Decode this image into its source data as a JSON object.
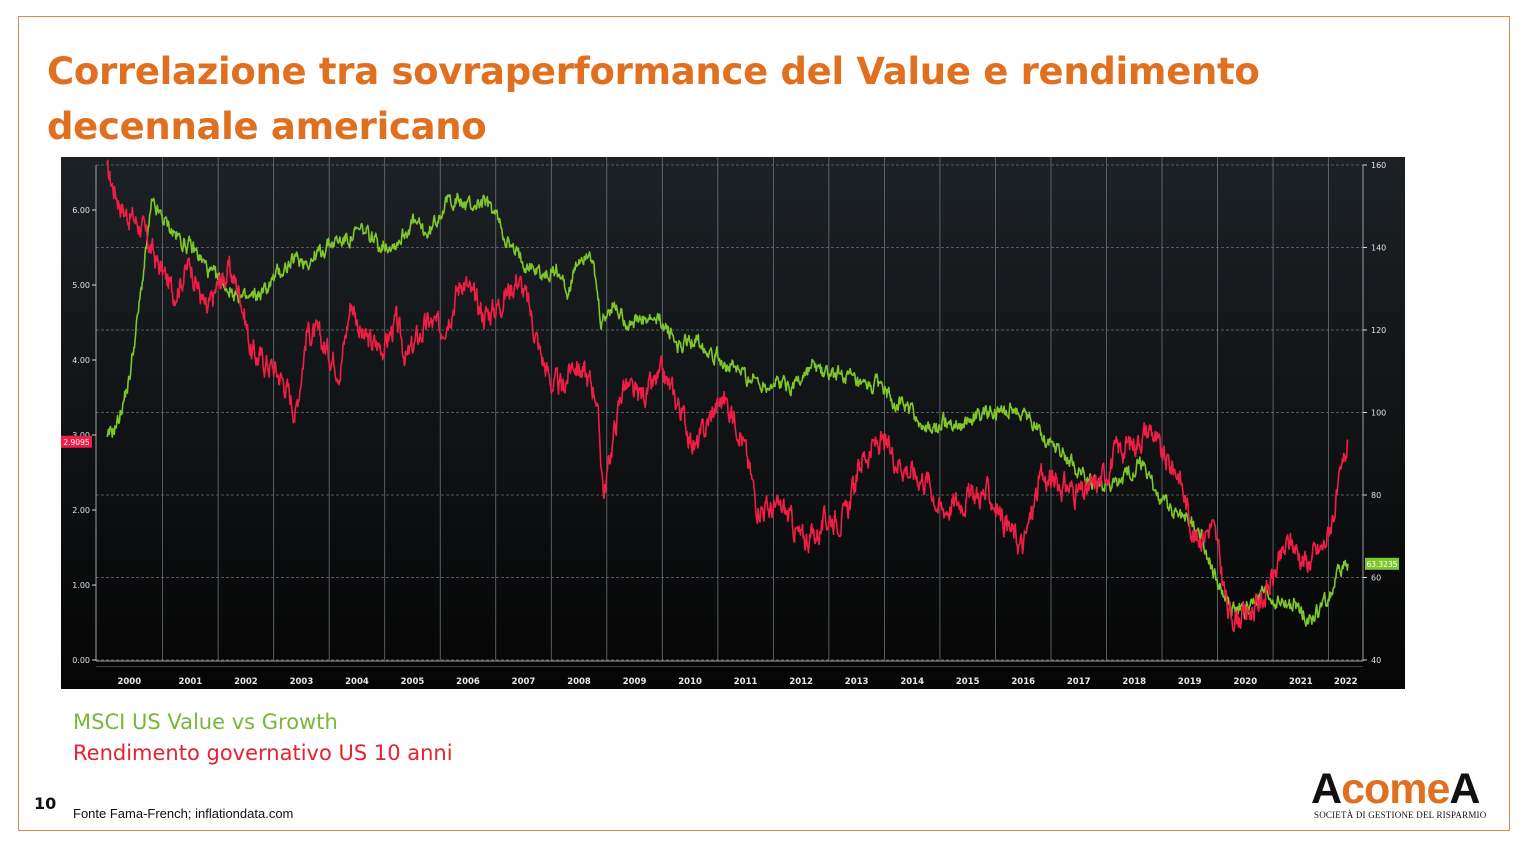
{
  "slide": {
    "title": "Correlazione tra sovraperformance del Value e rendimento decennale americano",
    "page_number": "10",
    "source": "Fonte Fama-French; inflationdata.com"
  },
  "legend": {
    "value_label": "MSCI US Value vs Growth",
    "yield_label": "Rendimento governativo US 10 anni"
  },
  "logo": {
    "part1": "A",
    "part2": "come",
    "part3": "A",
    "subtitle": "SOCIETÀ DI GESTIONE DEL RISPARMIO"
  },
  "colors": {
    "background_top": "#1c2125",
    "background_bottom": "#050505",
    "value_series": "#7ec62b",
    "yield_series": "#f01e46",
    "title": "#e0701f"
  },
  "chart_data": {
    "type": "line",
    "x_ticks": [
      "2000",
      "2001",
      "2002",
      "2003",
      "2004",
      "2005",
      "2006",
      "2007",
      "2008",
      "2009",
      "2010",
      "2011",
      "2012",
      "2013",
      "2014",
      "2015",
      "2016",
      "2017",
      "2018",
      "2019",
      "2020",
      "2021",
      "2022"
    ],
    "left_axis": {
      "ylim": [
        0,
        6.6
      ],
      "ticks": [
        "0.00",
        "1.00",
        "2.00",
        "3.00",
        "4.00",
        "5.00",
        "6.00"
      ]
    },
    "right_axis": {
      "ylim": [
        40,
        160
      ],
      "ticks": [
        "40",
        "60",
        "80",
        "100",
        "120",
        "140",
        "160"
      ]
    },
    "last_value_labels": {
      "yield": "2.9095",
      "value_vs_growth": "63.3235"
    },
    "grid": true,
    "series": [
      {
        "name": "Rendimento governativo US 10 anni",
        "axis": "left",
        "x": [
          2000.0,
          2000.3,
          2000.6,
          2000.9,
          2001.2,
          2001.5,
          2001.8,
          2002.0,
          2002.2,
          2002.4,
          2002.6,
          2002.8,
          2003.0,
          2003.2,
          2003.4,
          2003.6,
          2003.8,
          2004.0,
          2004.2,
          2004.4,
          2004.6,
          2004.8,
          2005.0,
          2005.2,
          2005.4,
          2005.6,
          2005.8,
          2006.0,
          2006.2,
          2006.4,
          2006.6,
          2006.8,
          2007.0,
          2007.2,
          2007.4,
          2007.6,
          2007.8,
          2008.0,
          2008.2,
          2008.4,
          2008.6,
          2008.8,
          2008.95,
          2009.1,
          2009.3,
          2009.5,
          2009.8,
          2010.0,
          2010.3,
          2010.6,
          2010.9,
          2011.1,
          2011.4,
          2011.7,
          2011.9,
          2012.2,
          2012.5,
          2012.8,
          2013.0,
          2013.3,
          2013.6,
          2013.9,
          2014.2,
          2014.5,
          2014.8,
          2015.0,
          2015.3,
          2015.6,
          2015.9,
          2016.2,
          2016.5,
          2016.8,
          2017.0,
          2017.3,
          2017.6,
          2017.9,
          2018.2,
          2018.5,
          2018.8,
          2019.0,
          2019.3,
          2019.6,
          2019.9,
          2020.0,
          2020.2,
          2020.5,
          2020.8,
          2021.0,
          2021.3,
          2021.6,
          2021.9,
          2022.0,
          2022.2,
          2022.35
        ],
        "values": [
          6.5,
          6.0,
          5.8,
          5.3,
          4.9,
          5.3,
          4.6,
          5.0,
          5.2,
          4.9,
          4.1,
          4.0,
          3.9,
          3.7,
          3.3,
          4.4,
          4.3,
          4.1,
          3.9,
          4.8,
          4.3,
          4.2,
          4.2,
          4.5,
          4.0,
          4.3,
          4.5,
          4.4,
          4.7,
          5.1,
          4.8,
          4.6,
          4.7,
          4.9,
          5.1,
          4.7,
          4.1,
          3.7,
          3.6,
          4.0,
          3.8,
          3.6,
          2.2,
          2.9,
          3.7,
          3.5,
          3.6,
          3.8,
          3.4,
          2.8,
          3.3,
          3.5,
          3.1,
          2.1,
          2.0,
          2.0,
          1.6,
          1.7,
          1.9,
          1.9,
          2.7,
          2.9,
          2.7,
          2.5,
          2.4,
          2.0,
          2.1,
          2.2,
          2.2,
          1.8,
          1.5,
          2.4,
          2.4,
          2.3,
          2.2,
          2.4,
          2.8,
          2.9,
          3.1,
          2.7,
          2.5,
          1.6,
          1.8,
          1.5,
          0.6,
          0.6,
          0.8,
          1.1,
          1.6,
          1.3,
          1.5,
          1.7,
          2.3,
          2.91
        ]
      },
      {
        "name": "MSCI US Value vs Growth",
        "axis": "right",
        "x": [
          2000.0,
          2000.2,
          2000.4,
          2000.6,
          2000.8,
          2001.0,
          2001.3,
          2001.6,
          2001.9,
          2002.2,
          2002.5,
          2002.8,
          2003.1,
          2003.4,
          2003.7,
          2004.0,
          2004.3,
          2004.6,
          2004.9,
          2005.2,
          2005.5,
          2005.8,
          2006.0,
          2006.2,
          2006.5,
          2006.8,
          2007.0,
          2007.3,
          2007.6,
          2007.9,
          2008.1,
          2008.3,
          2008.5,
          2008.7,
          2008.9,
          2009.1,
          2009.4,
          2009.7,
          2010.0,
          2010.3,
          2010.6,
          2010.9,
          2011.2,
          2011.5,
          2011.8,
          2012.1,
          2012.4,
          2012.7,
          2013.0,
          2013.3,
          2013.6,
          2013.9,
          2014.2,
          2014.5,
          2014.8,
          2015.1,
          2015.4,
          2015.7,
          2016.0,
          2016.3,
          2016.6,
          2016.9,
          2017.2,
          2017.5,
          2017.8,
          2018.0,
          2018.3,
          2018.6,
          2018.9,
          2019.1,
          2019.4,
          2019.7,
          2019.9,
          2020.1,
          2020.3,
          2020.5,
          2020.8,
          2021.1,
          2021.4,
          2021.7,
          2022.0,
          2022.2,
          2022.35
        ],
        "values": [
          93,
          98,
          108,
          128,
          150,
          147,
          142,
          139,
          133,
          130,
          127,
          129,
          134,
          137,
          137,
          141,
          142,
          144,
          141,
          141,
          146,
          143,
          149,
          152,
          150,
          151,
          148,
          139,
          136,
          133,
          135,
          129,
          137,
          140,
          121,
          126,
          122,
          122,
          122,
          116,
          118,
          115,
          111,
          109,
          107,
          107,
          107,
          111,
          109,
          109,
          105,
          107,
          103,
          100,
          95,
          98,
          97,
          100,
          99,
          101,
          99,
          94,
          91,
          86,
          83,
          82,
          83,
          88,
          81,
          77,
          75,
          71,
          62,
          56,
          52,
          52,
          56,
          54,
          53,
          50,
          55,
          62,
          63.32
        ]
      }
    ]
  }
}
